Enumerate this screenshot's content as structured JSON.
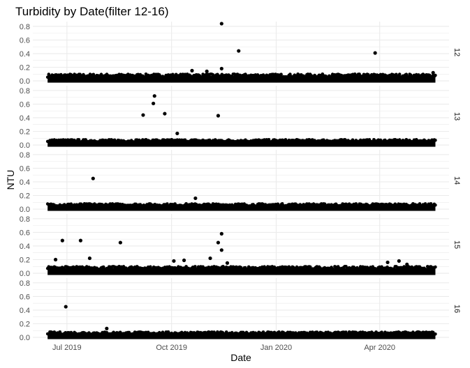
{
  "chart_data": {
    "type": "scatter",
    "title": "Turbidity by Date(filter 12-16)",
    "xlabel": "Date",
    "ylabel": "NTU",
    "x_range": [
      "2019-06-01",
      "2020-06-01"
    ],
    "x_ticks": [
      {
        "date": "2019-07-01",
        "label": "Jul 2019"
      },
      {
        "date": "2019-10-01",
        "label": "Oct 2019"
      },
      {
        "date": "2020-01-01",
        "label": "Jan 2020"
      },
      {
        "date": "2020-04-01",
        "label": "Apr 2020"
      }
    ],
    "ylim": [
      -0.03,
      0.87
    ],
    "y_ticks": [
      0.0,
      0.2,
      0.4,
      0.6,
      0.8
    ],
    "y_tick_labels": [
      "0.0",
      "0.2",
      "0.4",
      "0.6",
      "0.8"
    ],
    "grid": true,
    "point_color": "#000000",
    "panel_bg": "#ffffff",
    "grid_color": "#ebebeb",
    "facets": [
      {
        "label": "12",
        "baseline": {
          "start": "2019-06-14",
          "end": "2020-05-20",
          "low": 0.0,
          "high": 0.1
        },
        "points": [
          {
            "x": "2019-11-14",
            "y": 0.84
          },
          {
            "x": "2019-11-29",
            "y": 0.44
          },
          {
            "x": "2020-03-28",
            "y": 0.41
          },
          {
            "x": "2019-11-14",
            "y": 0.18
          },
          {
            "x": "2019-10-19",
            "y": 0.15
          },
          {
            "x": "2019-11-01",
            "y": 0.14
          },
          {
            "x": "2020-05-18",
            "y": 0.12
          }
        ]
      },
      {
        "label": "13",
        "baseline": {
          "start": "2019-06-14",
          "end": "2020-05-20",
          "low": 0.0,
          "high": 0.08
        },
        "points": [
          {
            "x": "2019-09-16",
            "y": 0.72
          },
          {
            "x": "2019-09-15",
            "y": 0.61
          },
          {
            "x": "2019-09-06",
            "y": 0.44
          },
          {
            "x": "2019-09-25",
            "y": 0.46
          },
          {
            "x": "2019-11-11",
            "y": 0.43
          },
          {
            "x": "2019-10-06",
            "y": 0.17
          }
        ]
      },
      {
        "label": "14",
        "baseline": {
          "start": "2019-06-14",
          "end": "2020-05-20",
          "low": 0.0,
          "high": 0.08
        },
        "points": [
          {
            "x": "2019-07-24",
            "y": 0.45
          },
          {
            "x": "2019-10-22",
            "y": 0.16
          }
        ]
      },
      {
        "label": "15",
        "baseline": {
          "start": "2019-06-14",
          "end": "2020-05-20",
          "low": 0.0,
          "high": 0.1
        },
        "points": [
          {
            "x": "2019-06-27",
            "y": 0.48
          },
          {
            "x": "2019-07-13",
            "y": 0.48
          },
          {
            "x": "2019-08-17",
            "y": 0.45
          },
          {
            "x": "2019-11-14",
            "y": 0.58
          },
          {
            "x": "2019-11-11",
            "y": 0.45
          },
          {
            "x": "2019-11-14",
            "y": 0.34
          },
          {
            "x": "2019-07-21",
            "y": 0.22
          },
          {
            "x": "2019-06-21",
            "y": 0.2
          },
          {
            "x": "2019-11-04",
            "y": 0.22
          },
          {
            "x": "2019-10-03",
            "y": 0.18
          },
          {
            "x": "2019-10-12",
            "y": 0.19
          },
          {
            "x": "2020-04-18",
            "y": 0.18
          },
          {
            "x": "2020-04-08",
            "y": 0.16
          },
          {
            "x": "2019-11-19",
            "y": 0.15
          },
          {
            "x": "2020-04-25",
            "y": 0.13
          }
        ]
      },
      {
        "label": "16",
        "baseline": {
          "start": "2019-06-14",
          "end": "2020-05-20",
          "low": 0.0,
          "high": 0.08
        },
        "points": [
          {
            "x": "2019-06-30",
            "y": 0.45
          },
          {
            "x": "2019-08-05",
            "y": 0.13
          }
        ]
      }
    ]
  }
}
